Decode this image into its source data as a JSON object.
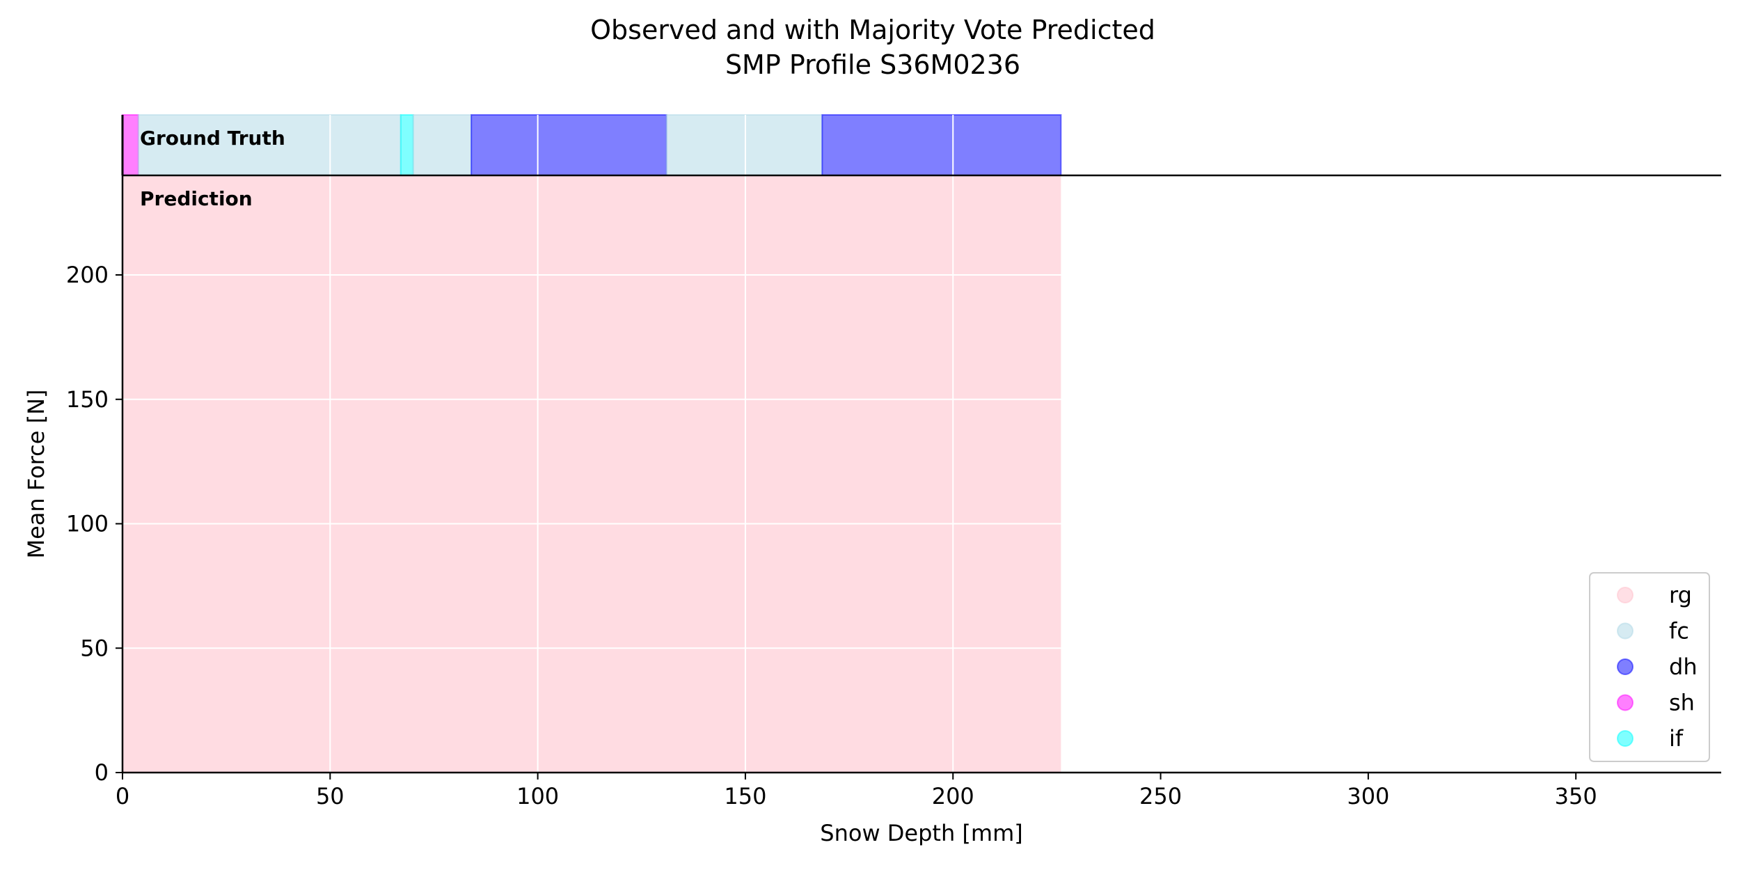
{
  "chart_data": {
    "type": "area",
    "title": "Observed and with Majority Vote Predicted",
    "subtitle": "SMP Profile S36M0236",
    "xlabel": "Snow Depth [mm]",
    "ylabel": "Mean Force [N]",
    "xlim": [
      0,
      385
    ],
    "ylim": [
      0,
      240
    ],
    "x_ticks": [
      0,
      50,
      100,
      150,
      200,
      250,
      300,
      350
    ],
    "y_ticks": [
      0,
      50,
      100,
      150,
      200
    ],
    "grid": true,
    "legend_position": "lower-right",
    "band_labels": {
      "ground_truth": "Ground Truth",
      "prediction": "Prediction"
    },
    "classes": [
      {
        "name": "rg",
        "color": "#ffc0cb"
      },
      {
        "name": "fc",
        "color": "#add8e6"
      },
      {
        "name": "dh",
        "color": "#0000ff"
      },
      {
        "name": "sh",
        "color": "#ff00ff"
      },
      {
        "name": "if",
        "color": "#00ffff"
      }
    ],
    "ground_truth": [
      {
        "label": "sh",
        "start": 0,
        "end": 3.8
      },
      {
        "label": "fc",
        "start": 3.8,
        "end": 67
      },
      {
        "label": "if",
        "start": 67,
        "end": 70
      },
      {
        "label": "fc",
        "start": 70,
        "end": 84
      },
      {
        "label": "dh",
        "start": 84,
        "end": 131
      },
      {
        "label": "fc",
        "start": 131,
        "end": 168.5
      },
      {
        "label": "dh",
        "start": 168.5,
        "end": 226
      }
    ],
    "prediction": [
      {
        "label": "rg",
        "start": 0,
        "end": 226
      }
    ]
  }
}
